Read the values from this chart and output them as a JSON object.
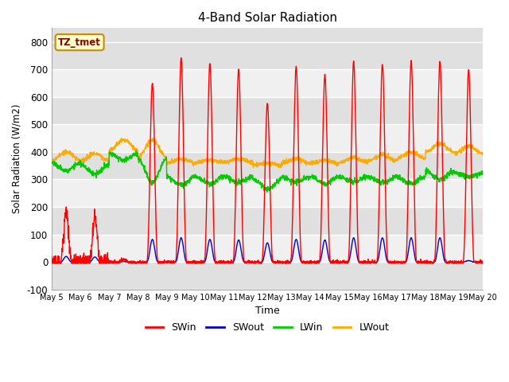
{
  "title": "4-Band Solar Radiation",
  "xlabel": "Time",
  "ylabel": "Solar Radiation (W/m2)",
  "ylim": [
    -100,
    850
  ],
  "yticks": [
    -100,
    0,
    100,
    200,
    300,
    400,
    500,
    600,
    700,
    800
  ],
  "num_days": 15,
  "points_per_day": 144,
  "legend_labels": [
    "SWin",
    "SWout",
    "LWin",
    "LWout"
  ],
  "legend_colors": [
    "#ff0000",
    "#0000cc",
    "#00cc00",
    "#ffaa00"
  ],
  "annotation_text": "TZ_tmet",
  "annotation_bg": "#ffffcc",
  "annotation_border": "#cc8800",
  "bg_stripe_light": "#f0f0f0",
  "bg_stripe_dark": "#e0e0e0",
  "grid_color": "#ffffff",
  "SW_in_peaks": [
    180,
    160,
    10,
    650,
    740,
    720,
    700,
    580,
    710,
    680,
    730,
    720,
    730,
    730,
    700
  ],
  "SW_out_peaks": [
    20,
    18,
    2,
    82,
    88,
    82,
    80,
    70,
    82,
    80,
    88,
    88,
    88,
    88,
    5
  ],
  "LW_in_day": [
    330,
    320,
    370,
    290,
    280,
    285,
    290,
    265,
    290,
    285,
    290,
    290,
    285,
    300,
    310
  ],
  "LW_in_night": [
    360,
    355,
    395,
    375,
    310,
    310,
    310,
    300,
    310,
    310,
    310,
    310,
    310,
    330,
    325
  ],
  "LW_out_day": [
    400,
    395,
    445,
    445,
    375,
    370,
    375,
    360,
    375,
    370,
    380,
    390,
    400,
    430,
    420
  ],
  "LW_out_night": [
    370,
    368,
    405,
    380,
    360,
    362,
    363,
    352,
    360,
    358,
    362,
    368,
    375,
    400,
    395
  ]
}
